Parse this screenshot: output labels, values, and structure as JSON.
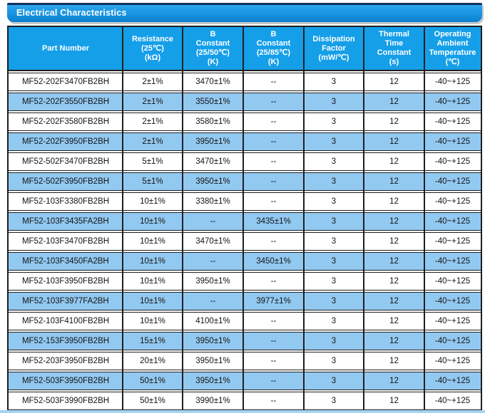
{
  "title_bar": {
    "label": "Electrical Characteristics"
  },
  "colors": {
    "title_gradient_top": "#2ea6ee",
    "title_gradient_bottom": "#0d7ecd",
    "title_navy_trim": "#14305c",
    "header_blue": "#159fe9",
    "row_alt_blue": "#92c9f1",
    "border_dark": "#1f1f1f",
    "bottom_strip_blue": "#a6d3f2"
  },
  "table": {
    "columns": [
      "Part Number",
      "Resistance\n(25℃)\n(kΩ)",
      "B\nConstant\n(25/50℃)\n(K)",
      "B\nConstant\n(25/85℃)\n(K)",
      "Dissipation\nFactor\n(mW/℃)",
      "Thermal\nTime\nConstant\n(s)",
      "Operating\nAmbient\nTemperature\n(℃)"
    ],
    "rows": [
      [
        "MF52-202F3470FB2BH",
        "2±1%",
        "3470±1%",
        "--",
        "3",
        "12",
        "-40~+125"
      ],
      [
        "MF52-202F3550FB2BH",
        "2±1%",
        "3550±1%",
        "--",
        "3",
        "12",
        "-40~+125"
      ],
      [
        "MF52-202F3580FB2BH",
        "2±1%",
        "3580±1%",
        "--",
        "3",
        "12",
        "-40~+125"
      ],
      [
        "MF52-202F3950FB2BH",
        "2±1%",
        "3950±1%",
        "--",
        "3",
        "12",
        "-40~+125"
      ],
      [
        "MF52-502F3470FB2BH",
        "5±1%",
        "3470±1%",
        "--",
        "3",
        "12",
        "-40~+125"
      ],
      [
        "MF52-502F3950FB2BH",
        "5±1%",
        "3950±1%",
        "--",
        "3",
        "12",
        "-40~+125"
      ],
      [
        "MF52-103F3380FB2BH",
        "10±1%",
        "3380±1%",
        "--",
        "3",
        "12",
        "-40~+125"
      ],
      [
        "MF52-103F3435FA2BH",
        "10±1%",
        "--",
        "3435±1%",
        "3",
        "12",
        "-40~+125"
      ],
      [
        "MF52-103F3470FB2BH",
        "10±1%",
        "3470±1%",
        "--",
        "3",
        "12",
        "-40~+125"
      ],
      [
        "MF52-103F3450FA2BH",
        "10±1%",
        "--",
        "3450±1%",
        "3",
        "12",
        "-40~+125"
      ],
      [
        "MF52-103F3950FB2BH",
        "10±1%",
        "3950±1%",
        "--",
        "3",
        "12",
        "-40~+125"
      ],
      [
        "MF52-103F3977FA2BH",
        "10±1%",
        "--",
        "3977±1%",
        "3",
        "12",
        "-40~+125"
      ],
      [
        "MF52-103F4100FB2BH",
        "10±1%",
        "4100±1%",
        "--",
        "3",
        "12",
        "-40~+125"
      ],
      [
        "MF52-153F3950FB2BH",
        "15±1%",
        "3950±1%",
        "--",
        "3",
        "12",
        "-40~+125"
      ],
      [
        "MF52-203F3950FB2BH",
        "20±1%",
        "3950±1%",
        "--",
        "3",
        "12",
        "-40~+125"
      ],
      [
        "MF52-503F3950FB2BH",
        "50±1%",
        "3950±1%",
        "--",
        "3",
        "12",
        "-40~+125"
      ],
      [
        "MF52-503F3990FB2BH",
        "50±1%",
        "3990±1%",
        "--",
        "3",
        "12",
        "-40~+125"
      ]
    ]
  }
}
